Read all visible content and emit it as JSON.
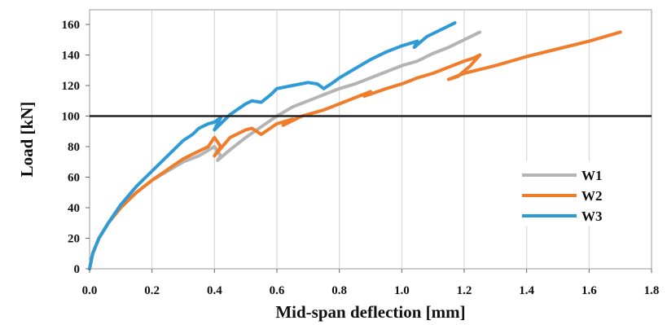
{
  "chart_data": {
    "type": "line",
    "title": "",
    "xlabel": "Mid-span deflection [mm]",
    "ylabel": "Load [kN]",
    "xlim": [
      0,
      1.8
    ],
    "ylim": [
      0,
      170
    ],
    "xticks": [
      0.0,
      0.2,
      0.4,
      0.6,
      0.8,
      1.0,
      1.2,
      1.4,
      1.6,
      1.8
    ],
    "yticks": [
      0,
      20,
      40,
      60,
      80,
      100,
      120,
      140,
      160
    ],
    "xtick_labels": [
      "0.0",
      "0.2",
      "0.4",
      "0.6",
      "0.8",
      "1.0",
      "1.2",
      "1.4",
      "1.6",
      "1.8"
    ],
    "ytick_labels": [
      "0",
      "20",
      "40",
      "60",
      "80",
      "100",
      "120",
      "140",
      "160"
    ],
    "grid": {
      "vertical": true,
      "horizontal": false
    },
    "reference_line": {
      "y": 100,
      "color": "#222222"
    },
    "legend_placement": "bottom-right",
    "series": [
      {
        "name": "W1",
        "color": "#b4b4b4",
        "x": [
          0.0,
          0.01,
          0.03,
          0.06,
          0.1,
          0.15,
          0.2,
          0.25,
          0.3,
          0.35,
          0.4,
          0.42,
          0.41,
          0.45,
          0.5,
          0.55,
          0.6,
          0.65,
          0.7,
          0.75,
          0.8,
          0.85,
          0.9,
          0.95,
          1.0,
          1.05,
          1.1,
          1.15,
          1.2,
          1.25
        ],
        "y": [
          0,
          10,
          20,
          30,
          41,
          50,
          58,
          64,
          70,
          74,
          80,
          74,
          71,
          78,
          86,
          93,
          100,
          106,
          110,
          114,
          118,
          121,
          125,
          129,
          133,
          136,
          141,
          145,
          150,
          155
        ]
      },
      {
        "name": "W2",
        "color": "#f07d2b",
        "x": [
          0.0,
          0.01,
          0.03,
          0.06,
          0.1,
          0.15,
          0.2,
          0.25,
          0.3,
          0.35,
          0.38,
          0.4,
          0.42,
          0.4,
          0.45,
          0.5,
          0.52,
          0.55,
          0.6,
          0.65,
          0.62,
          0.68,
          0.75,
          0.8,
          0.85,
          0.9,
          0.88,
          0.95,
          1.0,
          1.05,
          1.1,
          1.15,
          1.2,
          1.23,
          1.25,
          1.22,
          1.18,
          1.15,
          1.2,
          1.3,
          1.4,
          1.5,
          1.6,
          1.7
        ],
        "y": [
          0,
          10,
          20,
          30,
          40,
          50,
          58,
          65,
          72,
          77,
          80,
          86,
          80,
          74,
          86,
          91,
          92,
          88,
          95,
          98,
          94,
          100,
          104,
          108,
          112,
          116,
          113,
          118,
          121,
          125,
          128,
          132,
          136,
          138,
          140,
          133,
          126,
          124,
          128,
          133,
          139,
          144,
          149,
          155
        ]
      },
      {
        "name": "W3",
        "color": "#2e9bd6",
        "x": [
          0.0,
          0.01,
          0.03,
          0.06,
          0.1,
          0.15,
          0.2,
          0.25,
          0.3,
          0.33,
          0.35,
          0.38,
          0.4,
          0.42,
          0.4,
          0.45,
          0.5,
          0.52,
          0.55,
          0.58,
          0.6,
          0.65,
          0.7,
          0.73,
          0.75,
          0.78,
          0.8,
          0.85,
          0.9,
          0.95,
          1.0,
          1.05,
          1.04,
          1.08,
          1.12,
          1.15,
          1.17
        ],
        "y": [
          0,
          10,
          20,
          30,
          42,
          54,
          64,
          74,
          84,
          88,
          92,
          95,
          96,
          99,
          91,
          101,
          108,
          110,
          109,
          114,
          118,
          120,
          122,
          121,
          118,
          122,
          125,
          131,
          137,
          142,
          146,
          149,
          145,
          152,
          156,
          159,
          161
        ]
      }
    ]
  }
}
